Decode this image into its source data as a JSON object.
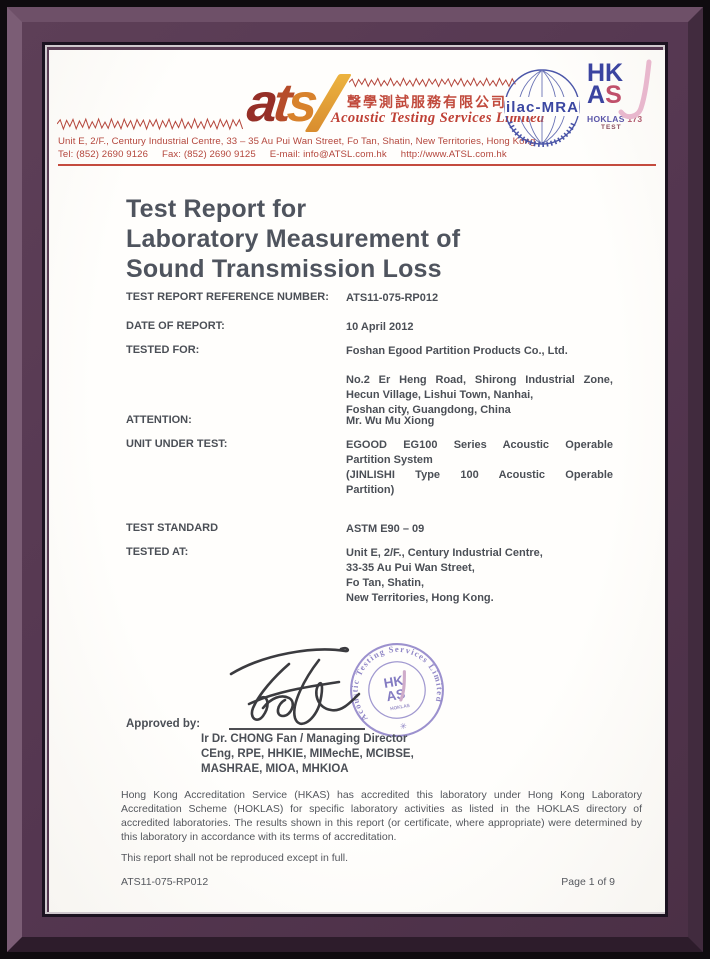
{
  "colors": {
    "frame_plum": "#57394f",
    "accent_red": "#c44b3e",
    "text_dark": "#4b4f56",
    "logo_dark_red": "#962f27",
    "logo_orange": "#d8822c",
    "logo_yellow": "#ecb33f",
    "ilac_blue": "#3b47a1",
    "hkas_blue": "#3b44a0",
    "stamp_purple": "#7d72bd"
  },
  "header": {
    "logo_letters": {
      "a": "a",
      "t": "t",
      "s": "s"
    },
    "company_name_zh": "聲學測試服務有限公司",
    "company_name_en": "Acoustic Testing Services Limited",
    "address": "Unit E, 2/F., Century Industrial Centre, 33 – 35 Au Pui Wan Street, Fo Tan, Shatin, New Territories, Hong Kong.",
    "contacts": {
      "tel": "Tel: (852) 2690 9126",
      "fax": "Fax: (852) 2690 9125",
      "email": "E-mail: info@ATSL.com.hk",
      "web": "http://www.ATSL.com.hk"
    },
    "ilac_label": "ilac-MRA",
    "hkas": {
      "hk": "HK",
      "a": "A",
      "s": "S",
      "hoklas": "HOKLAS",
      "number": "173",
      "test": "TEST"
    }
  },
  "title": {
    "line1": "Test Report for",
    "line2": "Laboratory Measurement of",
    "line3": "Sound Transmission Loss"
  },
  "fields": [
    {
      "label": "TEST REPORT REFERENCE NUMBER:",
      "value": "ATS11-075-RP012"
    },
    {
      "label": "DATE OF REPORT:",
      "value": "10 April 2012"
    },
    {
      "label": "TESTED FOR:",
      "value": "Foshan Egood Partition Products Co., Ltd."
    },
    {
      "label": "",
      "lines": [
        "No.2 Er Heng Road, Shirong Industrial Zone,",
        "Hecun Village, Lishui Town, Nanhai,",
        "Foshan city, Guangdong, China"
      ]
    },
    {
      "label": "ATTENTION:",
      "value": "Mr. Wu Mu Xiong"
    },
    {
      "label": "UNIT UNDER TEST:",
      "lines": [
        "EGOOD EG100 Series Acoustic Operable",
        "Partition System",
        "(JINLISHI Type 100 Acoustic Operable",
        "Partition)"
      ]
    },
    {
      "label": "TEST STANDARD",
      "value": "ASTM E90 – 09"
    },
    {
      "label": "TESTED AT:",
      "lines": [
        "Unit E, 2/F., Century Industrial Centre,",
        "33-35 Au Pui Wan Street,",
        "Fo Tan, Shatin,",
        "New Territories, Hong Kong."
      ]
    }
  ],
  "approval": {
    "approved_by_label": "Approved by:",
    "signatory": "Ir Dr. CHONG Fan / Managing Director",
    "qualifications1": "CEng, RPE, HHKIE, MIMechE, MCIBSE,",
    "qualifications2": "MASHRAE, MIOA, MHKIOA",
    "stamp_ring_text": "Acoustic  Testing  Services  Limited",
    "stamp_center_hk": "HK",
    "stamp_center_as": "AS",
    "stamp_center_sub": "HOKLAS"
  },
  "disclaimer": {
    "accreditation": "Hong Kong Accreditation Service (HKAS) has accredited this laboratory under Hong Kong Laboratory Accreditation Scheme (HOKLAS) for specific laboratory activities as listed in the HOKLAS directory of accredited laboratories. The results shown in this report (or certificate, where appropriate) were determined by this laboratory in accordance with its terms of accreditation.",
    "reproduction": "This report shall not be reproduced except in full."
  },
  "footer": {
    "report_number": "ATS11-075-RP012",
    "page": "Page 1 of 9"
  }
}
